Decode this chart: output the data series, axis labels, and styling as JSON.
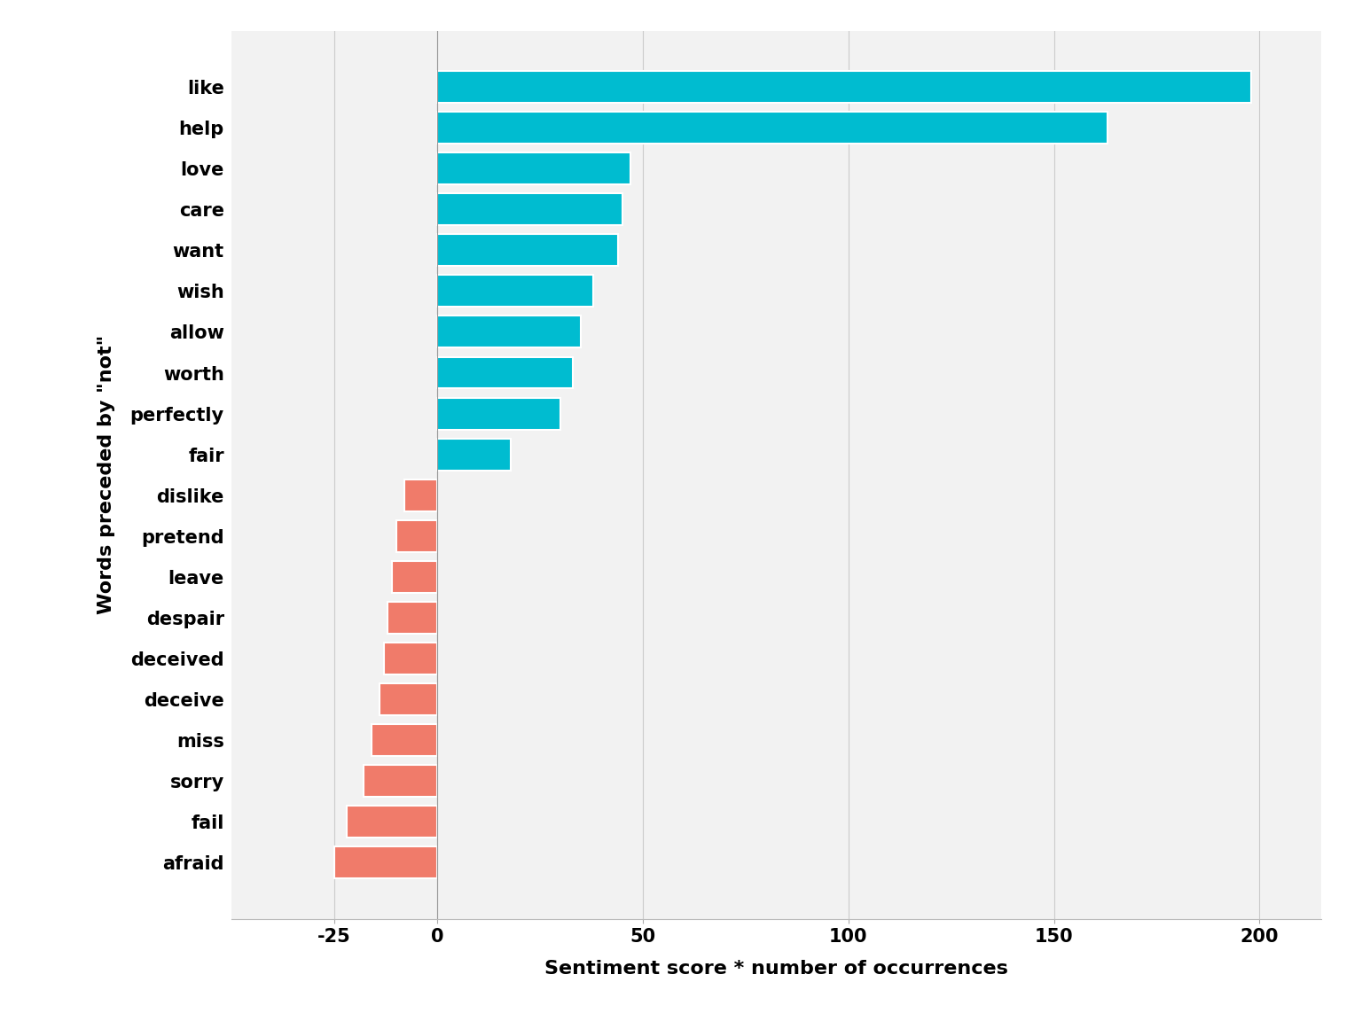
{
  "categories": [
    "like",
    "help",
    "love",
    "care",
    "want",
    "wish",
    "allow",
    "worth",
    "perfectly",
    "fair",
    "dislike",
    "pretend",
    "leave",
    "despair",
    "deceived",
    "deceive",
    "miss",
    "sorry",
    "fail",
    "afraid"
  ],
  "values": [
    198,
    163,
    47,
    45,
    44,
    38,
    35,
    33,
    30,
    18,
    -8,
    -10,
    -11,
    -12,
    -13,
    -14,
    -16,
    -18,
    -22,
    -25
  ],
  "teal_color": "#00BCD0",
  "salmon_color": "#F07B6A",
  "background_color": "#F2F2F2",
  "grid_color": "#CCCCCC",
  "xlabel": "Sentiment score * number of occurrences",
  "ylabel": "Words preceded by \"not\"",
  "label_fontsize": 16,
  "tick_fontsize": 15,
  "bar_height": 0.78
}
